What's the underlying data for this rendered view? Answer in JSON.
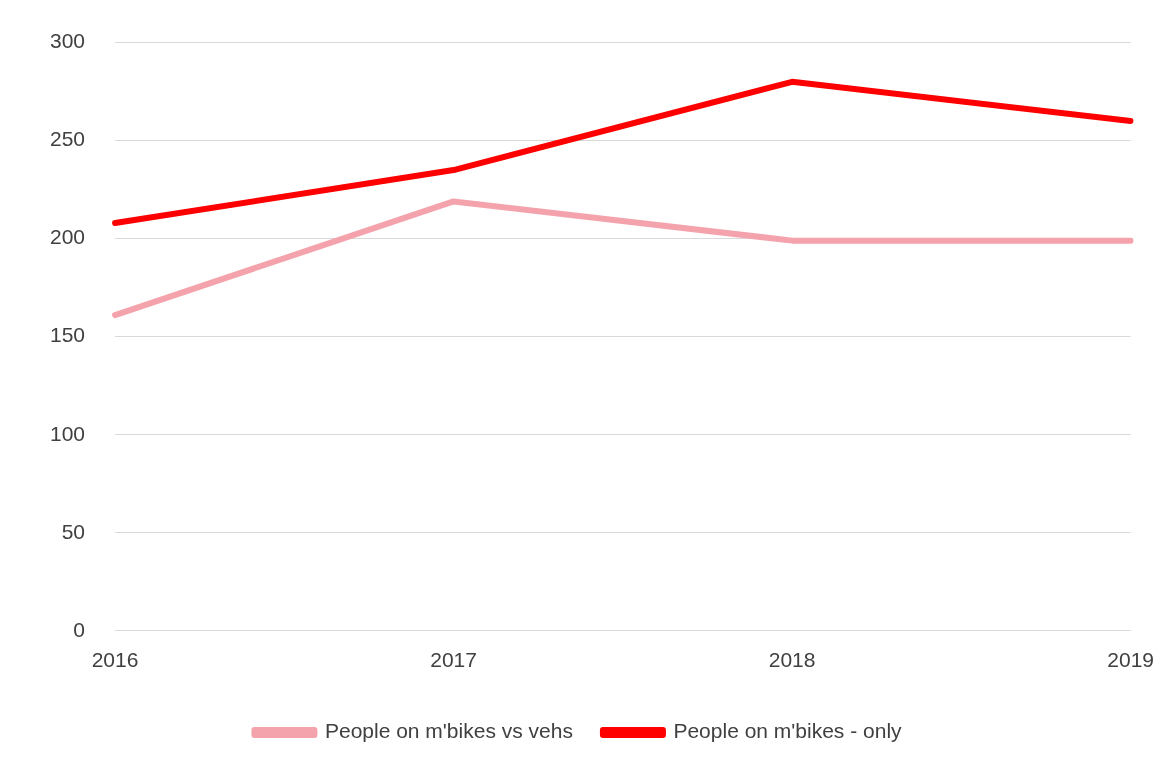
{
  "chart_data": {
    "type": "line",
    "categories": [
      "2016",
      "2017",
      "2018",
      "2019"
    ],
    "series": [
      {
        "name": "People on m'bikes vs vehs",
        "color": "#f4a3ad",
        "values": [
          161,
          219,
          199,
          199
        ]
      },
      {
        "name": "People on m'bikes - only",
        "color": "#ff0000",
        "values": [
          208,
          235,
          280,
          260
        ]
      }
    ],
    "ylim": [
      0,
      300
    ],
    "yticks": [
      0,
      50,
      100,
      150,
      200,
      250,
      300
    ],
    "grid": "y",
    "legend": "bottom",
    "marker": "none",
    "line_style": "solid"
  }
}
